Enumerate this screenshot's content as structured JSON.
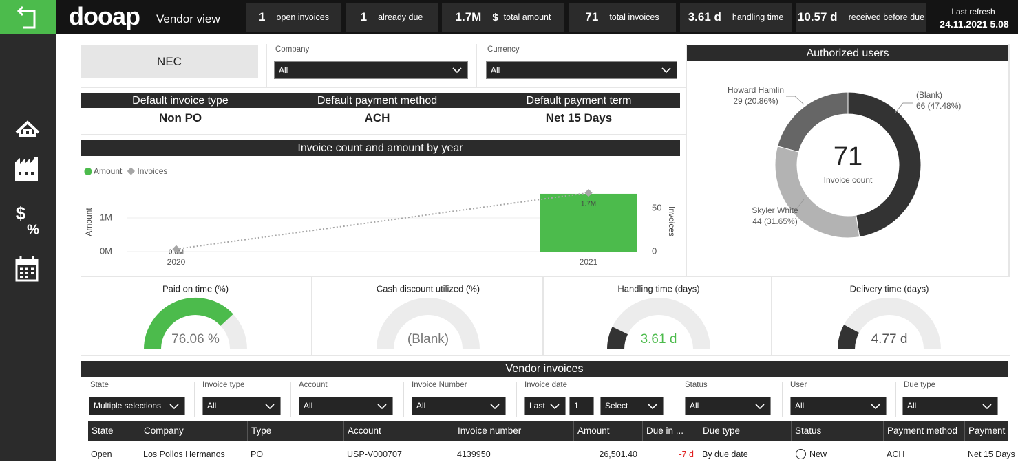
{
  "header": {
    "logo": "dooap",
    "view": "Vendor view",
    "kpis": [
      {
        "value": "1",
        "label": "open invoices"
      },
      {
        "value": "1",
        "label": "already due"
      },
      {
        "value": "1.7M",
        "unit": "$",
        "label": "total amount"
      },
      {
        "value": "71",
        "label": "total invoices"
      },
      {
        "value": "3.61 d",
        "label": "handling time"
      },
      {
        "value": "10.57 d",
        "label": "received before due"
      }
    ],
    "refresh_label": "Last refresh",
    "refresh_value": "24.11.2021 5.08"
  },
  "sidebar": {
    "icon_texts": [
      "$",
      "%"
    ]
  },
  "vendor": "NEC",
  "filters": [
    {
      "label": "Company",
      "value": "All"
    },
    {
      "label": "Currency",
      "value": "All"
    }
  ],
  "defaults": [
    {
      "label": "Default invoice type",
      "value": "Non PO"
    },
    {
      "label": "Default payment method",
      "value": "ACH"
    },
    {
      "label": "Default payment term",
      "value": "Net 15 Days"
    }
  ],
  "chart_data": [
    {
      "type": "bar",
      "title": "Invoice count and amount by year",
      "categories": [
        "2020",
        "2021"
      ],
      "series": [
        {
          "name": "Amount",
          "color": "#4cbb4c",
          "values": [
            0,
            1700000
          ],
          "value_labels": [
            "0.0M",
            "1.7M"
          ]
        },
        {
          "name": "Invoices",
          "type": "line",
          "axis": "y2",
          "color": "#a6a6a6",
          "values": [
            3,
            68
          ]
        }
      ],
      "y_label": "Amount",
      "y2_label": "Invoices",
      "ylim": [
        0,
        2000000
      ],
      "yticks": [
        {
          "value": 0,
          "label": "0M"
        },
        {
          "value": 1000000,
          "label": "1M"
        }
      ],
      "y2lim": [
        0,
        78
      ],
      "y2ticks": [
        0,
        50
      ],
      "grid": true,
      "legend": "top-left"
    },
    {
      "type": "pie",
      "title": "Authorized users",
      "categories": [
        "(Blank)",
        "Skyler White",
        "Howard Hamlin"
      ],
      "values": [
        66,
        44,
        29
      ],
      "value_labels": [
        "66 (47.48%)",
        "44 (31.65%)",
        "29 (20.86%)"
      ],
      "colors": [
        "#333333",
        "#b3b3b3",
        "#666666"
      ],
      "center_value": 71,
      "center_label": "Invoice count"
    },
    {
      "type": "gauge",
      "title": "Paid on time (%)",
      "value": 76.06,
      "value_label": "76.06 %",
      "ylim": [
        0,
        100
      ],
      "color": "#4cbb4c",
      "label_color": "#777777"
    },
    {
      "type": "gauge",
      "title": "Cash discount utilized (%)",
      "value": null,
      "value_label": "(Blank)",
      "ylim": [
        0,
        100
      ],
      "color": "#333333",
      "label_color": "#777777"
    },
    {
      "type": "gauge",
      "title": "Handling time (days)",
      "value": 3.61,
      "value_label": "3.61 d",
      "ylim": [
        0,
        25
      ],
      "color": "#333333",
      "label_color": "#4cbb4c"
    },
    {
      "type": "gauge",
      "title": "Delivery time (days)",
      "value": 4.77,
      "value_label": "4.77 d",
      "ylim": [
        0,
        30
      ],
      "color": "#333333",
      "label_color": "#555555"
    }
  ],
  "table": {
    "title": "Vendor invoices",
    "filters": [
      {
        "label": "State",
        "value": "Multiple selections"
      },
      {
        "label": "Invoice type",
        "value": "All"
      },
      {
        "label": "Account",
        "value": "All"
      },
      {
        "label": "Invoice Number",
        "value": "All"
      },
      {
        "label": "Invoice date",
        "period": "Last",
        "count": "1",
        "unit": "Select"
      },
      {
        "label": "Status",
        "value": "All"
      },
      {
        "label": "User",
        "value": "All"
      },
      {
        "label": "Due type",
        "value": "All"
      }
    ],
    "columns": [
      "State",
      "Company",
      "Type",
      "Account",
      "Invoice number",
      "Amount",
      "Due in ...",
      "Due type",
      "Status",
      "Payment method",
      "Payment"
    ],
    "rows": [
      [
        "Open",
        "Los Pollos Hermanos",
        "PO",
        "USP-V000707",
        "4139950",
        "26,501.40",
        "-7 d",
        "By due date",
        "New",
        "ACH",
        "Net 15 Days"
      ]
    ]
  }
}
